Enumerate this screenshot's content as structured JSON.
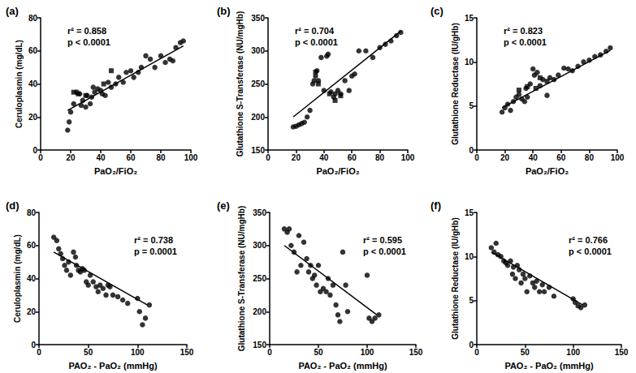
{
  "chart_data": [
    {
      "type": "scatter",
      "panel": "(a)",
      "xlabel": "PaO₂/FiO₂",
      "ylabel": "Ceruloplasmin (mg/dL)",
      "annotations": [
        "r² = 0.858",
        "p < 0.0001"
      ],
      "grid": false,
      "xlim": [
        0,
        100
      ],
      "xticks": [
        0,
        20,
        40,
        60,
        80,
        100
      ],
      "ylim": [
        0,
        80
      ],
      "yticks": [
        0,
        20,
        40,
        60,
        80
      ],
      "series": [
        {
          "type": "scatter",
          "marker": "circle",
          "color": "#000000",
          "x": [
            18,
            19,
            20,
            22,
            24,
            26,
            27,
            28,
            30,
            31,
            33,
            34,
            35,
            36,
            38,
            40,
            41,
            43,
            45,
            47,
            50,
            52,
            55,
            57,
            60,
            62,
            65,
            67,
            70,
            73,
            76,
            80,
            83,
            86,
            88,
            90,
            93,
            95
          ],
          "values": [
            12,
            17,
            23,
            28,
            35,
            34,
            27,
            30,
            26,
            33,
            28,
            32,
            38,
            35,
            37,
            36,
            34,
            33,
            41,
            38,
            40,
            44,
            41,
            47,
            48,
            44,
            47,
            50,
            57,
            55,
            50,
            57,
            53,
            55,
            54,
            62,
            65,
            66
          ]
        },
        {
          "type": "scatter",
          "marker": "square",
          "color": "#000000",
          "x": [
            22,
            25,
            30,
            42,
            47
          ],
          "values": [
            35,
            34,
            33,
            40,
            48
          ]
        },
        {
          "type": "line",
          "line_style": "solid",
          "color": "#000000",
          "x": [
            18,
            95
          ],
          "values": [
            24,
            63
          ]
        }
      ]
    },
    {
      "type": "scatter",
      "panel": "(b)",
      "xlabel": "PaO₂/FiO₂",
      "ylabel": "Glutathione S-Transferase (NU/mgHb)",
      "annotations": [
        "r² = 0.704",
        "p < 0.0001"
      ],
      "grid": false,
      "xlim": [
        0,
        100
      ],
      "xticks": [
        0,
        20,
        40,
        60,
        80,
        100
      ],
      "ylim": [
        150,
        350
      ],
      "yticks": [
        150,
        200,
        250,
        300,
        350
      ],
      "series": [
        {
          "type": "scatter",
          "marker": "circle",
          "color": "#000000",
          "x": [
            18,
            20,
            22,
            24,
            26,
            28,
            30,
            32,
            33,
            34,
            35,
            36,
            38,
            40,
            42,
            43,
            45,
            47,
            48,
            50,
            52,
            55,
            58,
            60,
            62,
            65,
            70,
            75,
            80,
            84,
            88,
            92,
            95
          ],
          "values": [
            185,
            186,
            188,
            190,
            192,
            200,
            210,
            250,
            255,
            262,
            270,
            255,
            290,
            240,
            292,
            295,
            238,
            230,
            235,
            240,
            235,
            255,
            240,
            262,
            265,
            300,
            300,
            290,
            305,
            310,
            315,
            323,
            328
          ]
        },
        {
          "type": "scatter",
          "marker": "square",
          "color": "#000000",
          "x": [
            34,
            36,
            44,
            48,
            52
          ],
          "values": [
            268,
            250,
            235,
            225,
            232
          ]
        },
        {
          "type": "line",
          "line_style": "solid",
          "color": "#000000",
          "x": [
            18,
            95
          ],
          "values": [
            200,
            330
          ]
        }
      ]
    },
    {
      "type": "scatter",
      "panel": "(c)",
      "xlabel": "PaO₂/FiO₂",
      "ylabel": "Glutathione Reductase (IU/gHb)",
      "annotations": [
        "r² = 0.823",
        "p < 0.0001"
      ],
      "grid": false,
      "xlim": [
        0,
        100
      ],
      "xticks": [
        0,
        20,
        40,
        60,
        80,
        100
      ],
      "ylim": [
        0,
        15
      ],
      "yticks": [
        0,
        5,
        10,
        15
      ],
      "series": [
        {
          "type": "scatter",
          "marker": "circle",
          "color": "#000000",
          "x": [
            18,
            20,
            22,
            24,
            26,
            28,
            30,
            32,
            34,
            35,
            36,
            38,
            40,
            41,
            43,
            45,
            47,
            50,
            52,
            55,
            58,
            62,
            65,
            68,
            72,
            76,
            80,
            84,
            88,
            92,
            95
          ],
          "values": [
            4.3,
            4.8,
            5.2,
            4.5,
            5.5,
            6.0,
            6.3,
            5.8,
            5.5,
            7.0,
            6.0,
            7.5,
            9.2,
            8.5,
            8.8,
            7.3,
            8.0,
            6.2,
            8.2,
            8.0,
            8.5,
            9.3,
            9.2,
            9.0,
            9.5,
            10.0,
            10.2,
            10.6,
            10.8,
            11.2,
            11.6
          ]
        },
        {
          "type": "scatter",
          "marker": "square",
          "color": "#000000",
          "x": [
            30,
            36,
            42,
            45,
            50
          ],
          "values": [
            6.8,
            7.2,
            7.0,
            8.2,
            7.8
          ]
        },
        {
          "type": "line",
          "line_style": "solid",
          "color": "#000000",
          "x": [
            18,
            95
          ],
          "values": [
            4.8,
            11.3
          ]
        }
      ]
    },
    {
      "type": "scatter",
      "panel": "(d)",
      "xlabel": "PAO₂ - PaO₂ (mmHg)",
      "ylabel": "Ceruloplasmin (mg/dL)",
      "annotations": [
        "r² = 0.738",
        "p = 0.0001"
      ],
      "grid": false,
      "xlim": [
        0,
        150
      ],
      "xticks": [
        0,
        50,
        100,
        150
      ],
      "ylim": [
        0,
        80
      ],
      "yticks": [
        0,
        20,
        40,
        60,
        80
      ],
      "series": [
        {
          "type": "scatter",
          "marker": "circle",
          "color": "#000000",
          "x": [
            15,
            18,
            20,
            22,
            24,
            26,
            28,
            30,
            32,
            35,
            37,
            38,
            40,
            42,
            44,
            46,
            48,
            50,
            52,
            55,
            58,
            60,
            62,
            65,
            68,
            70,
            72,
            75,
            80,
            85,
            90,
            100,
            102,
            105,
            108,
            112
          ],
          "values": [
            65,
            63,
            58,
            55,
            52,
            48,
            45,
            50,
            42,
            56,
            53,
            48,
            45,
            44,
            46,
            45,
            38,
            36,
            42,
            38,
            35,
            32,
            36,
            34,
            30,
            36,
            35,
            30,
            29,
            27,
            25,
            28,
            20,
            12,
            16,
            24
          ]
        },
        {
          "type": "line",
          "line_style": "solid",
          "color": "#000000",
          "x": [
            15,
            110
          ],
          "values": [
            56,
            24
          ]
        }
      ]
    },
    {
      "type": "scatter",
      "panel": "(e)",
      "xlabel": "PAO₂ - PaO₂ (mmHg)",
      "ylabel": "Glutathione S-Transferase (NU/mgHb)",
      "annotations": [
        "r² = 0.595",
        "p < 0.0001"
      ],
      "grid": false,
      "xlim": [
        0,
        150
      ],
      "xticks": [
        0,
        50,
        100,
        150
      ],
      "ylim": [
        150,
        350
      ],
      "yticks": [
        150,
        200,
        250,
        300,
        350
      ],
      "series": [
        {
          "type": "scatter",
          "marker": "circle",
          "color": "#000000",
          "x": [
            15,
            18,
            20,
            22,
            25,
            28,
            30,
            32,
            35,
            38,
            40,
            42,
            44,
            46,
            48,
            50,
            52,
            55,
            58,
            60,
            62,
            65,
            68,
            70,
            72,
            75,
            78,
            80,
            100,
            102,
            105,
            108,
            112
          ],
          "values": [
            325,
            320,
            325,
            300,
            290,
            260,
            315,
            270,
            305,
            280,
            260,
            270,
            250,
            255,
            240,
            270,
            230,
            235,
            230,
            250,
            225,
            240,
            210,
            195,
            185,
            290,
            240,
            200,
            255,
            190,
            185,
            190,
            195
          ]
        },
        {
          "type": "line",
          "line_style": "solid",
          "color": "#000000",
          "x": [
            15,
            110
          ],
          "values": [
            300,
            195
          ]
        }
      ]
    },
    {
      "type": "scatter",
      "panel": "(f)",
      "xlabel": "PAO₂ - PaO₂ (mmHg)",
      "ylabel": "Glutathione Reductase (IU/gHb)",
      "annotations": [
        "r² = 0.766",
        "p < 0.0001"
      ],
      "grid": false,
      "xlim": [
        0,
        150
      ],
      "xticks": [
        0,
        50,
        100,
        150
      ],
      "ylim": [
        0,
        15
      ],
      "yticks": [
        0,
        5,
        10,
        15
      ],
      "series": [
        {
          "type": "scatter",
          "marker": "circle",
          "color": "#000000",
          "x": [
            15,
            18,
            20,
            22,
            25,
            28,
            30,
            32,
            35,
            37,
            38,
            40,
            42,
            44,
            46,
            48,
            50,
            52,
            55,
            58,
            60,
            62,
            65,
            68,
            70,
            75,
            80,
            100,
            102,
            105,
            108,
            112
          ],
          "values": [
            11,
            10.5,
            11.5,
            10.2,
            10,
            9.5,
            9.3,
            9.0,
            9.5,
            8.0,
            8.8,
            7.5,
            9.0,
            8.5,
            7.0,
            8.0,
            7.5,
            6.0,
            7.8,
            7.0,
            6.5,
            7.2,
            6.0,
            6.8,
            6.0,
            6.5,
            5.5,
            5.2,
            4.8,
            4.4,
            4.2,
            4.5
          ]
        },
        {
          "type": "line",
          "line_style": "solid",
          "color": "#000000",
          "x": [
            15,
            110
          ],
          "values": [
            10.5,
            4.5
          ]
        }
      ]
    }
  ]
}
